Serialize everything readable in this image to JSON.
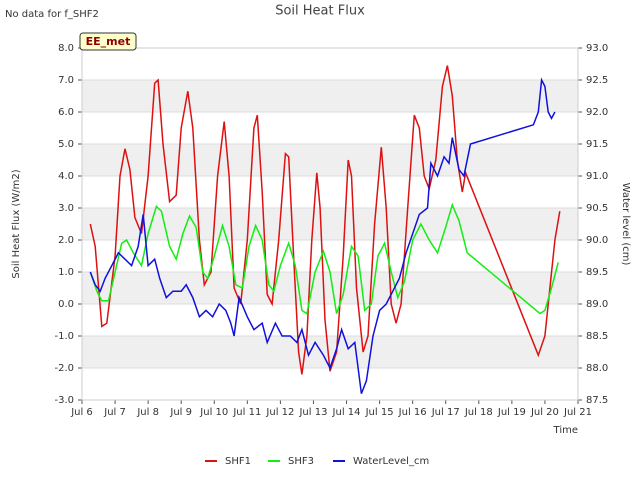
{
  "chart_data": {
    "type": "line",
    "title": "Soil Heat Flux",
    "note": "No data for f_SHF2",
    "badge": "EE_met",
    "xlabel": "Time",
    "ylabel": "Soil Heat Flux (W/m2)",
    "y2label": "Water level (cm)",
    "xlim": [
      6,
      21
    ],
    "xticks": [
      {
        "value": 6,
        "label": "Jul 6"
      },
      {
        "value": 7,
        "label": "Jul 7"
      },
      {
        "value": 8,
        "label": "Jul 8"
      },
      {
        "value": 9,
        "label": "Jul 9"
      },
      {
        "value": 10,
        "label": "Jul 10"
      },
      {
        "value": 11,
        "label": "Jul 11"
      },
      {
        "value": 12,
        "label": "Jul 12"
      },
      {
        "value": 13,
        "label": "Jul 13"
      },
      {
        "value": 14,
        "label": "Jul 14"
      },
      {
        "value": 15,
        "label": "Jul 15"
      },
      {
        "value": 16,
        "label": "Jul 16"
      },
      {
        "value": 17,
        "label": "Jul 17"
      },
      {
        "value": 18,
        "label": "Jul 18"
      },
      {
        "value": 19,
        "label": "Jul 19"
      },
      {
        "value": 20,
        "label": "Jul 20"
      },
      {
        "value": 21,
        "label": "Jul 21"
      }
    ],
    "ylim": [
      -3,
      8
    ],
    "yticks": [
      {
        "value": -3,
        "label": "-3.0"
      },
      {
        "value": -2,
        "label": "-2.0"
      },
      {
        "value": -1,
        "label": "-1.0"
      },
      {
        "value": 0,
        "label": "0.0"
      },
      {
        "value": 1,
        "label": "1.0"
      },
      {
        "value": 2,
        "label": "2.0"
      },
      {
        "value": 3,
        "label": "3.0"
      },
      {
        "value": 4,
        "label": "4.0"
      },
      {
        "value": 5,
        "label": "5.0"
      },
      {
        "value": 6,
        "label": "6.0"
      },
      {
        "value": 7,
        "label": "7.0"
      },
      {
        "value": 8,
        "label": "8.0"
      }
    ],
    "y2lim": [
      87.5,
      93
    ],
    "y2ticks": [
      87.5,
      {
        "value": 88,
        "label": "88.0"
      },
      88.5,
      {
        "value": 89,
        "label": "89.0"
      },
      89.5,
      {
        "value": 90,
        "label": "90.0"
      },
      90.5,
      {
        "value": 91,
        "label": "91.0"
      },
      91.5,
      {
        "value": 92,
        "label": "92.0"
      },
      92.5,
      {
        "value": 93,
        "label": "93.0"
      }
    ],
    "grid": true,
    "legend": "bottom",
    "series": [
      {
        "name": "SHF1",
        "color": "#dd1111",
        "x": [
          6.25,
          6.4,
          6.6,
          6.75,
          7.0,
          7.15,
          7.3,
          7.45,
          7.6,
          7.8,
          8.0,
          8.2,
          8.3,
          8.45,
          8.65,
          8.85,
          9.0,
          9.2,
          9.35,
          9.55,
          9.7,
          9.9,
          10.1,
          10.3,
          10.45,
          10.6,
          10.8,
          11.0,
          11.2,
          11.3,
          11.45,
          11.6,
          11.75,
          11.95,
          12.15,
          12.25,
          12.4,
          12.55,
          12.65,
          12.8,
          12.95,
          13.1,
          13.2,
          13.35,
          13.5,
          13.7,
          13.9,
          14.05,
          14.15,
          14.3,
          14.5,
          14.65,
          14.85,
          15.05,
          15.2,
          15.35,
          15.5,
          15.65,
          15.85,
          16.05,
          16.2,
          16.35,
          16.5,
          16.7,
          16.9,
          17.05,
          17.2,
          17.35,
          17.5,
          17.6,
          19.8,
          20.0,
          20.15,
          20.3,
          20.45
        ],
        "values": [
          2.5,
          1.8,
          -0.7,
          -0.6,
          1.5,
          4.0,
          4.85,
          4.2,
          2.7,
          2.2,
          4.0,
          6.9,
          7.0,
          5.0,
          3.2,
          3.4,
          5.5,
          6.65,
          5.5,
          2.0,
          0.6,
          1.0,
          4.0,
          5.7,
          4.0,
          0.5,
          0.0,
          2.0,
          5.5,
          5.9,
          3.5,
          0.3,
          0.0,
          2.0,
          4.7,
          4.6,
          1.5,
          -1.5,
          -2.2,
          -1.0,
          2.0,
          4.1,
          3.0,
          -0.5,
          -2.1,
          -1.5,
          1.5,
          4.5,
          4.0,
          0.5,
          -1.5,
          -1.0,
          2.5,
          4.9,
          3.0,
          0.0,
          -0.6,
          0.0,
          3.0,
          5.9,
          5.5,
          4.0,
          3.6,
          4.5,
          6.8,
          7.45,
          6.5,
          4.5,
          3.5,
          4.1,
          -1.6,
          -1.0,
          0.5,
          2.0,
          2.9
        ]
      },
      {
        "name": "SHF3",
        "color": "#11ee11",
        "x": [
          6.25,
          6.45,
          6.6,
          6.8,
          7.0,
          7.2,
          7.35,
          7.55,
          7.8,
          8.0,
          8.25,
          8.4,
          8.65,
          8.85,
          9.05,
          9.25,
          9.45,
          9.65,
          9.8,
          10.0,
          10.25,
          10.45,
          10.65,
          10.85,
          11.05,
          11.25,
          11.45,
          11.65,
          11.8,
          12.0,
          12.25,
          12.45,
          12.65,
          12.8,
          13.05,
          13.3,
          13.5,
          13.7,
          13.9,
          14.15,
          14.35,
          14.55,
          14.75,
          14.95,
          15.15,
          15.35,
          15.55,
          15.75,
          16.0,
          16.25,
          16.5,
          16.75,
          17.0,
          17.2,
          17.4,
          17.65,
          19.85,
          20.0,
          20.2,
          20.4
        ],
        "values": [
          1.0,
          0.4,
          0.1,
          0.1,
          1.0,
          1.9,
          2.0,
          1.6,
          1.2,
          2.2,
          3.05,
          2.9,
          1.8,
          1.4,
          2.2,
          2.75,
          2.4,
          1.0,
          0.8,
          1.5,
          2.45,
          1.8,
          0.6,
          0.5,
          1.8,
          2.45,
          2.0,
          0.6,
          0.4,
          1.2,
          1.9,
          1.2,
          -0.2,
          -0.3,
          1.0,
          1.65,
          1.0,
          -0.3,
          0.3,
          1.8,
          1.5,
          -0.2,
          0.0,
          1.5,
          1.9,
          1.0,
          0.2,
          0.7,
          2.0,
          2.5,
          2.0,
          1.6,
          2.4,
          3.1,
          2.6,
          1.6,
          -0.3,
          -0.2,
          0.5,
          1.3
        ]
      },
      {
        "name": "WaterLevel_cm",
        "color": "#1111dd",
        "axis": "y2",
        "x": [
          6.25,
          6.4,
          6.55,
          6.7,
          6.9,
          7.1,
          7.3,
          7.5,
          7.7,
          7.85,
          8.0,
          8.2,
          8.35,
          8.55,
          8.75,
          9.0,
          9.15,
          9.35,
          9.55,
          9.75,
          9.95,
          10.15,
          10.35,
          10.5,
          10.6,
          10.75,
          11.0,
          11.2,
          11.45,
          11.6,
          11.85,
          12.05,
          12.3,
          12.5,
          12.65,
          12.85,
          13.05,
          13.3,
          13.5,
          13.7,
          13.85,
          14.05,
          14.25,
          14.45,
          14.6,
          14.8,
          15.0,
          15.2,
          15.4,
          15.6,
          15.8,
          16.0,
          16.2,
          16.45,
          16.55,
          16.75,
          16.95,
          17.1,
          17.2,
          17.4,
          17.55,
          17.75,
          19.65,
          19.8,
          19.9,
          20.0,
          20.1,
          20.2,
          20.3
        ],
        "values": [
          89.5,
          89.3,
          89.2,
          89.4,
          89.6,
          89.8,
          89.7,
          89.6,
          89.9,
          90.4,
          89.6,
          89.7,
          89.4,
          89.1,
          89.2,
          89.2,
          89.3,
          89.1,
          88.8,
          88.9,
          88.8,
          89.0,
          88.9,
          88.7,
          88.5,
          89.1,
          88.8,
          88.6,
          88.7,
          88.4,
          88.7,
          88.5,
          88.5,
          88.4,
          88.6,
          88.2,
          88.4,
          88.2,
          88.0,
          88.3,
          88.6,
          88.3,
          88.4,
          87.6,
          87.8,
          88.5,
          88.9,
          89.0,
          89.2,
          89.4,
          89.8,
          90.1,
          90.4,
          90.5,
          91.2,
          91.0,
          91.3,
          91.2,
          91.6,
          91.1,
          91.0,
          91.5,
          91.8,
          92.0,
          92.5,
          92.4,
          92.0,
          91.9,
          92.0
        ]
      }
    ]
  }
}
